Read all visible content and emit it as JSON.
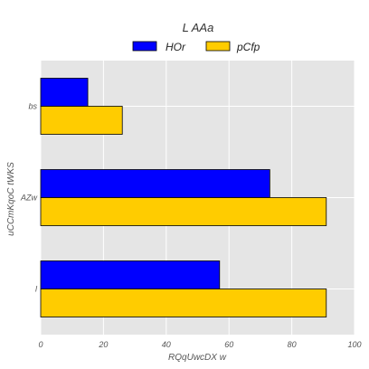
{
  "chart_data": {
    "type": "bar",
    "orientation": "horizontal",
    "title": "L AAa",
    "xlabel": "RQqUwcDX  w",
    "ylabel": "uCCmKqoC tWKS",
    "categories": [
      "bs",
      "AZw",
      "l"
    ],
    "series": [
      {
        "name": "HOr",
        "values": [
          15,
          73,
          57
        ]
      },
      {
        "name": "pCfp",
        "values": [
          26,
          91,
          91
        ]
      }
    ],
    "xlim": [
      0,
      100
    ],
    "xticks": [
      "0",
      "20",
      "40",
      "60",
      "80",
      "100"
    ],
    "grid": true,
    "legend_position": "top-center",
    "colors": {
      "series": [
        "#0000ff",
        "#ffcc00"
      ],
      "plot_background": "#e5e5e5",
      "grid": "#ffffff",
      "bar_edge": "#000000"
    }
  }
}
